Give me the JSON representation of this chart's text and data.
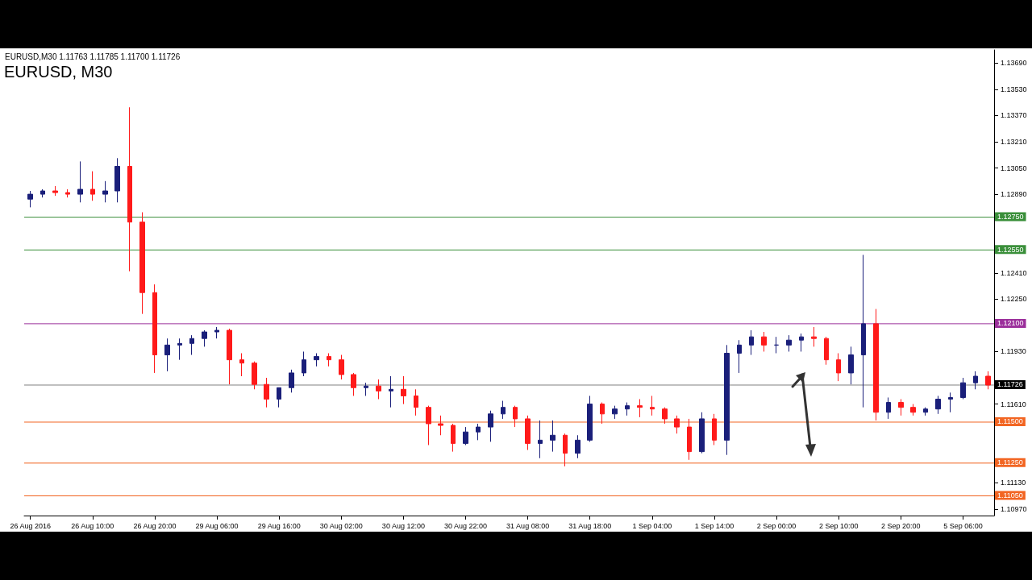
{
  "chart_data": {
    "type": "candlestick",
    "title": "EURUSD, M30",
    "annotations": [
      "EURUSD,M30 1.11763 1.11785 1.11700 1.11726"
    ],
    "categories": [
      "26 Aug 2016",
      null,
      null,
      null,
      null,
      "26 Aug 10:00",
      null,
      null,
      null,
      null,
      "26 Aug 20:00",
      null,
      null,
      null,
      null,
      "29 Aug 06:00",
      null,
      null,
      null,
      null,
      "29 Aug 16:00",
      null,
      null,
      null,
      null,
      "30 Aug 02:00",
      null,
      null,
      null,
      null,
      "30 Aug 12:00",
      null,
      null,
      null,
      null,
      "30 Aug 22:00",
      null,
      null,
      null,
      null,
      "31 Aug 08:00",
      null,
      null,
      null,
      null,
      "31 Aug 18:00",
      null,
      null,
      null,
      null,
      "1 Sep 04:00",
      null,
      null,
      null,
      null,
      "1 Sep 14:00",
      null,
      null,
      null,
      null,
      "2 Sep 00:00",
      null,
      null,
      null,
      null,
      "2 Sep 10:00",
      null,
      null,
      null,
      null,
      "2 Sep 20:00",
      null,
      null,
      null,
      null,
      "5 Sep 06:00",
      null,
      null
    ],
    "ohlc": [
      [
        1.1286,
        1.1291,
        1.1281,
        1.1289
      ],
      [
        1.1289,
        1.1292,
        1.1287,
        1.1291
      ],
      [
        1.1291,
        1.1294,
        1.1288,
        1.129
      ],
      [
        1.129,
        1.1292,
        1.1287,
        1.1289
      ],
      [
        1.1289,
        1.1309,
        1.1284,
        1.1292
      ],
      [
        1.1292,
        1.1303,
        1.1285,
        1.1289
      ],
      [
        1.1289,
        1.1297,
        1.1284,
        1.1291
      ],
      [
        1.1291,
        1.1311,
        1.1284,
        1.1306
      ],
      [
        1.1306,
        1.1342,
        1.1242,
        1.1272
      ],
      [
        1.1272,
        1.1278,
        1.1216,
        1.1229
      ],
      [
        1.1229,
        1.1234,
        1.118,
        1.1191
      ],
      [
        1.1191,
        1.1201,
        1.1181,
        1.1197
      ],
      [
        1.1197,
        1.1201,
        1.1188,
        1.1198
      ],
      [
        1.1198,
        1.1203,
        1.1191,
        1.1201
      ],
      [
        1.1201,
        1.1206,
        1.1196,
        1.1205
      ],
      [
        1.1205,
        1.1208,
        1.1201,
        1.1206
      ],
      [
        1.1206,
        1.1207,
        1.1173,
        1.1188
      ],
      [
        1.1188,
        1.1192,
        1.1178,
        1.1186
      ],
      [
        1.1186,
        1.1187,
        1.117,
        1.1173
      ],
      [
        1.1173,
        1.1177,
        1.1159,
        1.1164
      ],
      [
        1.1164,
        1.1171,
        1.1159,
        1.1171
      ],
      [
        1.1171,
        1.1182,
        1.1168,
        1.118
      ],
      [
        1.118,
        1.1193,
        1.1178,
        1.1188
      ],
      [
        1.1188,
        1.1192,
        1.1184,
        1.119
      ],
      [
        1.119,
        1.1192,
        1.1184,
        1.1188
      ],
      [
        1.1188,
        1.1191,
        1.1176,
        1.1179
      ],
      [
        1.1179,
        1.118,
        1.1166,
        1.1171
      ],
      [
        1.1171,
        1.1174,
        1.1166,
        1.1172
      ],
      [
        1.1172,
        1.1176,
        1.1164,
        1.1169
      ],
      [
        1.1169,
        1.1178,
        1.1159,
        1.117
      ],
      [
        1.117,
        1.1178,
        1.1161,
        1.1166
      ],
      [
        1.1166,
        1.117,
        1.1154,
        1.1159
      ],
      [
        1.1159,
        1.116,
        1.1136,
        1.1149
      ],
      [
        1.1149,
        1.1154,
        1.1142,
        1.1148
      ],
      [
        1.1148,
        1.1149,
        1.1132,
        1.1137
      ],
      [
        1.1137,
        1.1147,
        1.1136,
        1.1144
      ],
      [
        1.1144,
        1.1149,
        1.1139,
        1.1147
      ],
      [
        1.1147,
        1.1157,
        1.1138,
        1.1155
      ],
      [
        1.1155,
        1.1163,
        1.1152,
        1.1159
      ],
      [
        1.1159,
        1.116,
        1.1147,
        1.1152
      ],
      [
        1.1152,
        1.1154,
        1.1133,
        1.1137
      ],
      [
        1.1137,
        1.1151,
        1.1128,
        1.1139
      ],
      [
        1.1139,
        1.1151,
        1.1132,
        1.1142
      ],
      [
        1.1142,
        1.1143,
        1.1123,
        1.1131
      ],
      [
        1.1131,
        1.1142,
        1.1128,
        1.1139
      ],
      [
        1.1139,
        1.1166,
        1.1138,
        1.1161
      ],
      [
        1.1161,
        1.1162,
        1.1149,
        1.1155
      ],
      [
        1.1155,
        1.116,
        1.1152,
        1.1158
      ],
      [
        1.1158,
        1.1162,
        1.1154,
        1.116
      ],
      [
        1.116,
        1.1164,
        1.1153,
        1.1159
      ],
      [
        1.1159,
        1.1166,
        1.1154,
        1.1158
      ],
      [
        1.1158,
        1.1159,
        1.1149,
        1.1152
      ],
      [
        1.1152,
        1.1154,
        1.1143,
        1.1147
      ],
      [
        1.1147,
        1.1152,
        1.1127,
        1.1132
      ],
      [
        1.1132,
        1.1156,
        1.1131,
        1.1152
      ],
      [
        1.1152,
        1.1155,
        1.1136,
        1.1139
      ],
      [
        1.1139,
        1.1197,
        1.113,
        1.1192
      ],
      [
        1.1192,
        1.12,
        1.118,
        1.1197
      ],
      [
        1.1197,
        1.1206,
        1.1191,
        1.1202
      ],
      [
        1.1202,
        1.1205,
        1.1193,
        1.1197
      ],
      [
        1.1197,
        1.1202,
        1.1192,
        1.1197
      ],
      [
        1.1197,
        1.1203,
        1.1193,
        1.12
      ],
      [
        1.12,
        1.1204,
        1.1193,
        1.1202
      ],
      [
        1.1202,
        1.1208,
        1.1196,
        1.1201
      ],
      [
        1.1201,
        1.1202,
        1.1185,
        1.1188
      ],
      [
        1.1188,
        1.1192,
        1.1175,
        1.118
      ],
      [
        1.118,
        1.1196,
        1.1173,
        1.1191
      ],
      [
        1.1191,
        1.1252,
        1.1159,
        1.121
      ],
      [
        1.121,
        1.1219,
        1.1151,
        1.1156
      ],
      [
        1.1156,
        1.1165,
        1.1152,
        1.1162
      ],
      [
        1.1162,
        1.1164,
        1.1154,
        1.1159
      ],
      [
        1.1159,
        1.1161,
        1.1154,
        1.1156
      ],
      [
        1.1156,
        1.1159,
        1.1154,
        1.1158
      ],
      [
        1.1158,
        1.1166,
        1.1155,
        1.1164
      ],
      [
        1.1164,
        1.1168,
        1.1156,
        1.1165
      ],
      [
        1.1165,
        1.1177,
        1.1164,
        1.1174
      ],
      [
        1.1174,
        1.1181,
        1.117,
        1.1178
      ],
      [
        1.1178,
        1.1181,
        1.117,
        1.11726
      ]
    ],
    "colors": [
      "#1a1f7a",
      "#1a1f7a",
      "#ff1a1a",
      "#ff1a1a",
      "#1a1f7a",
      "#ff1a1a",
      "#1a1f7a",
      "#1a1f7a",
      "#ff1a1a",
      "#ff1a1a",
      "#ff1a1a",
      "#1a1f7a",
      "#1a1f7a",
      "#1a1f7a",
      "#1a1f7a",
      "#1a1f7a",
      "#ff1a1a",
      "#ff1a1a",
      "#ff1a1a",
      "#ff1a1a",
      "#1a1f7a",
      "#1a1f7a",
      "#1a1f7a",
      "#1a1f7a",
      "#ff1a1a",
      "#ff1a1a",
      "#ff1a1a",
      "#1a1f7a",
      "#ff1a1a",
      "#1a1f7a",
      "#ff1a1a",
      "#ff1a1a",
      "#ff1a1a",
      "#ff1a1a",
      "#ff1a1a",
      "#1a1f7a",
      "#1a1f7a",
      "#1a1f7a",
      "#1a1f7a",
      "#ff1a1a",
      "#ff1a1a",
      "#1a1f7a",
      "#1a1f7a",
      "#ff1a1a",
      "#1a1f7a",
      "#1a1f7a",
      "#ff1a1a",
      "#1a1f7a",
      "#1a1f7a",
      "#ff1a1a",
      "#ff1a1a",
      "#ff1a1a",
      "#ff1a1a",
      "#ff1a1a",
      "#1a1f7a",
      "#ff1a1a",
      "#1a1f7a",
      "#1a1f7a",
      "#1a1f7a",
      "#ff1a1a",
      "#1a1f7a",
      "#1a1f7a",
      "#1a1f7a",
      "#ff1a1a",
      "#ff1a1a",
      "#ff1a1a",
      "#1a1f7a",
      "#1a1f7a",
      "#ff1a1a",
      "#1a1f7a",
      "#ff1a1a",
      "#ff1a1a",
      "#1a1f7a",
      "#1a1f7a",
      "#1a1f7a",
      "#1a1f7a",
      "#1a1f7a",
      "#ff1a1a"
    ],
    "ylim": [
      1.1093,
      1.1377
    ],
    "yticks": [
      {
        "value": 1.1369,
        "label": "1.13690"
      },
      {
        "value": 1.1353,
        "label": "1.13530"
      },
      {
        "value": 1.1337,
        "label": "1.13370"
      },
      {
        "value": 1.1321,
        "label": "1.13210"
      },
      {
        "value": 1.1305,
        "label": "1.13050"
      },
      {
        "value": 1.1289,
        "label": "1.12890"
      },
      {
        "value": 1.1241,
        "label": "1.12410"
      },
      {
        "value": 1.1225,
        "label": "1.12250"
      },
      {
        "value": 1.1193,
        "label": "1.11930"
      },
      {
        "value": 1.1161,
        "label": "1.11610"
      },
      {
        "value": 1.1113,
        "label": "1.11130"
      },
      {
        "value": 1.1097,
        "label": "1.10970"
      }
    ],
    "ref_lines": [
      {
        "axis": "y",
        "value": 1.1275,
        "label": "1.12750",
        "color": "#3a8f3a"
      },
      {
        "axis": "y",
        "value": 1.1255,
        "label": "1.12550",
        "color": "#3a8f3a"
      },
      {
        "axis": "y",
        "value": 1.121,
        "label": "1.12100",
        "color": "#9b2f9b"
      },
      {
        "axis": "y",
        "value": 1.11726,
        "label": "1.11726",
        "color": "#808080"
      },
      {
        "axis": "y",
        "value": 1.115,
        "label": "1.11500",
        "color": "#f26522"
      },
      {
        "axis": "y",
        "value": 1.1125,
        "label": "1.11250",
        "color": "#f26522"
      },
      {
        "axis": "y",
        "value": 1.1105,
        "label": "1.11050",
        "color": "#f26522"
      }
    ],
    "grid": false
  }
}
